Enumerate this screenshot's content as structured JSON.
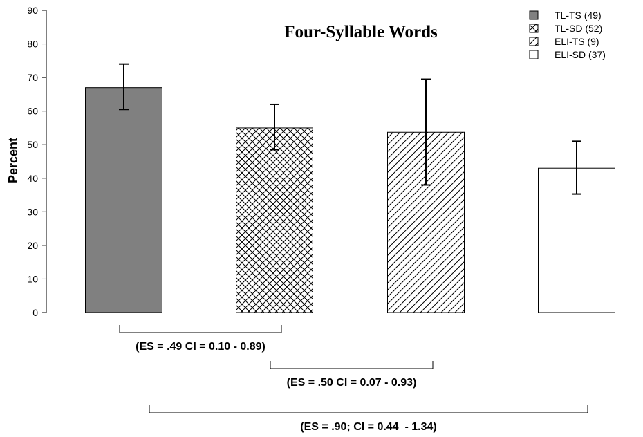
{
  "chart_data": {
    "type": "bar",
    "title": "Four-Syllable Words",
    "ylabel": "Percent",
    "xlabel": "",
    "ylim": [
      0,
      90
    ],
    "yticks": [
      0,
      10,
      20,
      30,
      40,
      50,
      60,
      70,
      80,
      90
    ],
    "grid": false,
    "legend_position": "top-right",
    "series": [
      {
        "name": "TL-TS (49)",
        "value": 67,
        "err_low": 60.5,
        "err_high": 74,
        "pattern": "solid-gray",
        "color": "#808080"
      },
      {
        "name": "TL-SD (52)",
        "value": 55,
        "err_low": 48.5,
        "err_high": 62,
        "pattern": "crosshatch",
        "color": "#000000"
      },
      {
        "name": "ELI-TS (9)",
        "value": 53.7,
        "err_low": 38,
        "err_high": 69.5,
        "pattern": "diagonal",
        "color": "#000000"
      },
      {
        "name": "ELI-SD (37)",
        "value": 43,
        "err_low": 35.3,
        "err_high": 51,
        "pattern": "none",
        "color": "#ffffff"
      }
    ],
    "comparisons": [
      {
        "from": 0,
        "to": 1,
        "label": "(ES = .49 CI = 0.10 - 0.89)"
      },
      {
        "from": 1,
        "to": 2,
        "label": "(ES = .50 CI = 0.07 - 0.93)"
      },
      {
        "from": 0,
        "to": 3,
        "label": "(ES = .90; CI = 0.44  - 1.34)"
      }
    ]
  }
}
